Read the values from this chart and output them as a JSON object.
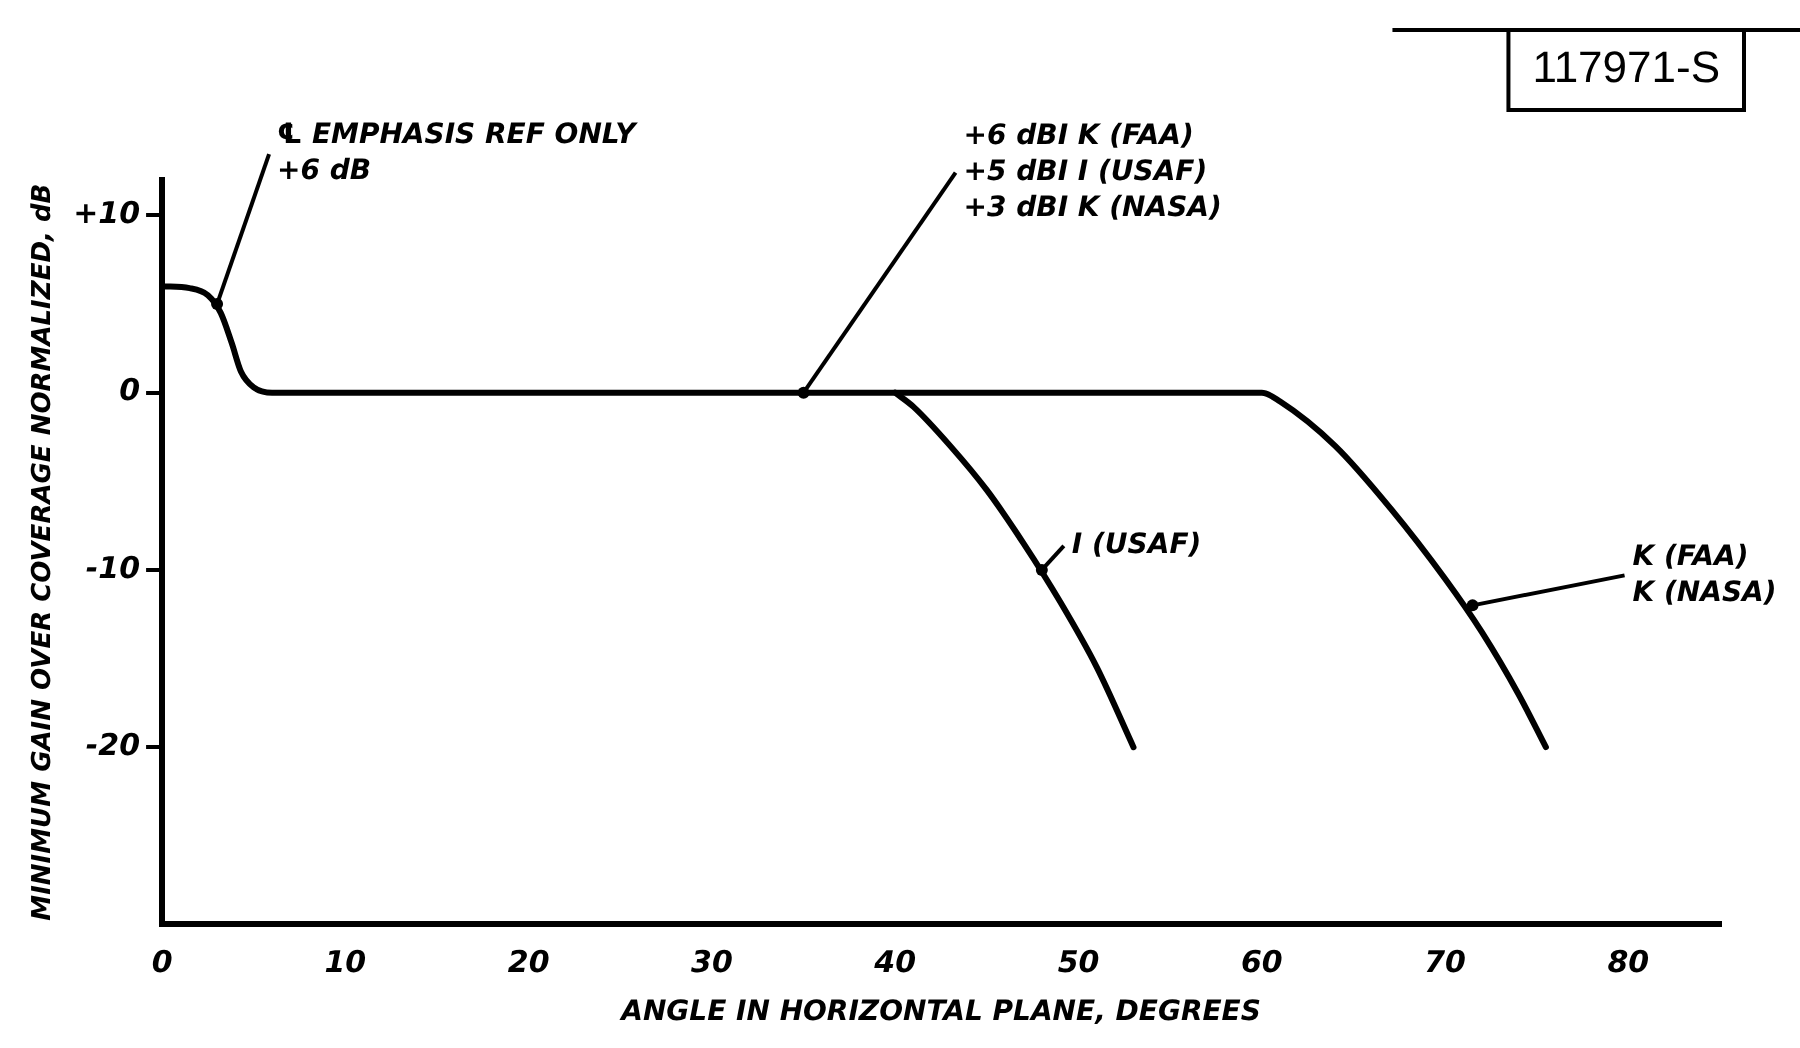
{
  "chart_data": {
    "type": "line",
    "xlabel": "ANGLE IN HORIZONTAL PLANE, DEGREES",
    "ylabel": "MINIMUM GAIN OVER COVERAGE NORMALIZED, dB",
    "xlim": [
      0,
      85
    ],
    "ylim": [
      -30,
      12
    ],
    "xticks": [
      0,
      10,
      20,
      30,
      40,
      50,
      60,
      70,
      80
    ],
    "yticks": [
      {
        "value": 10,
        "label": "+10"
      },
      0,
      -10,
      -20
    ],
    "grid": false,
    "legend": false,
    "marker": "none",
    "line_style": "solid",
    "series": [
      {
        "color": "#000000",
        "x": [
          0,
          1.5,
          2.5,
          3.2,
          3.8,
          4.3,
          5,
          6,
          20,
          40,
          60,
          61,
          64,
          67,
          70,
          72,
          74,
          75.5
        ],
        "values": [
          6,
          5.9,
          5.5,
          4.5,
          2.8,
          1.2,
          0.3,
          0,
          0,
          0,
          0,
          -0.5,
          -3,
          -6.5,
          -10.5,
          -13.5,
          -17,
          -20
        ]
      },
      {
        "color": "#000000",
        "x": [
          40,
          41,
          43,
          45,
          47,
          49,
          51,
          53
        ],
        "values": [
          0,
          -0.8,
          -3,
          -5.5,
          -8.5,
          -11.8,
          -15.5,
          -20
        ]
      }
    ],
    "annotations": [
      "117971-S",
      {
        "text": "℄ EMPHASIS REF ONLY\n+6 dB",
        "x": 3,
        "y": 5
      },
      {
        "text": "+6 dBI K (FAA)\n+5 dBI I (USAF)\n+3 dBI K (NASA)",
        "x": 35,
        "y": 0
      },
      {
        "text": "I (USAF)",
        "x": 48,
        "y": -10
      },
      {
        "text": "K (FAA)\nK (NASA)",
        "x": 71.5,
        "y": -12
      }
    ]
  }
}
